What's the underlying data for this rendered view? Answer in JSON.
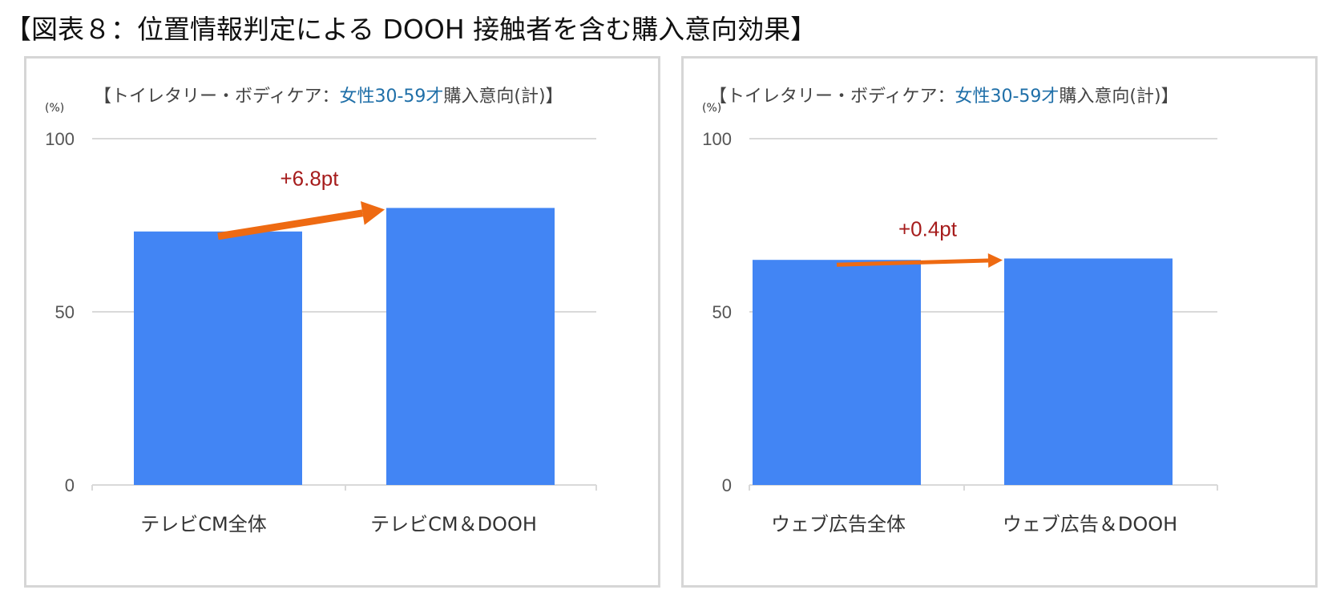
{
  "figure_title": "【図表８：位置情報判定による DOOH 接触者を含む購入意向効果】",
  "colors": {
    "bar": "#4285f4",
    "arrow": "#ee6a12",
    "annotation": "#a61c1c",
    "highlight": "#1f6fa8",
    "grid": "#d9d9d9"
  },
  "chart_data": [
    {
      "type": "bar",
      "title_prefix": "【トイレタリー・ボディケア：",
      "title_highlight": "女性30-59才",
      "title_suffix": "購入意向(計)】",
      "ylabel": "(%)",
      "ylim": [
        0,
        100
      ],
      "yticks": [
        "0",
        "50",
        "100"
      ],
      "grid": true,
      "categories": [
        "テレビCM全体",
        "テレビCM＆DOOH"
      ],
      "values": [
        73.2,
        80.0
      ],
      "annotation": "+6.8pt"
    },
    {
      "type": "bar",
      "title_prefix": "【トイレタリー・ボディケア：",
      "title_highlight": "女性30-59才",
      "title_suffix": "購入意向(計)】",
      "ylabel": "(%)",
      "ylim": [
        0,
        100
      ],
      "yticks": [
        "0",
        "50",
        "100"
      ],
      "grid": true,
      "categories": [
        "ウェブ広告全体",
        "ウェブ広告＆DOOH"
      ],
      "values": [
        65.0,
        65.4
      ],
      "annotation": "+0.4pt"
    }
  ]
}
